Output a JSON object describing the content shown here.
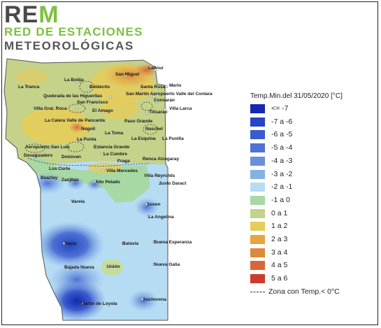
{
  "logo": {
    "brand_part1": "RE",
    "brand_part2": "M",
    "line1": "RED DE ESTACIONES",
    "line2": "METEOROLÓGICAS"
  },
  "legend": {
    "title": "Temp.Min.del 31/05/2020 [°C]",
    "items": [
      {
        "label": "<= -7",
        "color": "#1428b4"
      },
      {
        "label": "-7 a -6",
        "color": "#2446c4"
      },
      {
        "label": "-6 a -5",
        "color": "#3a5ccc"
      },
      {
        "label": "-5 a -4",
        "color": "#4e72d4"
      },
      {
        "label": "-4 a -3",
        "color": "#6890dc"
      },
      {
        "label": "-3 a -2",
        "color": "#84b0e6"
      },
      {
        "label": "-2 a -1",
        "color": "#b6dcf4"
      },
      {
        "label": "-1 a 0",
        "color": "#a8d8a4"
      },
      {
        "label": "0 a 1",
        "color": "#c4d28a"
      },
      {
        "label": "1 a 2",
        "color": "#e6cc5a"
      },
      {
        "label": "2 a 3",
        "color": "#e4a642"
      },
      {
        "label": "3 a 4",
        "color": "#dc8a3c"
      },
      {
        "label": "4 a 5",
        "color": "#d8663a"
      },
      {
        "label": "5 a 6",
        "color": "#cc3c2c"
      }
    ],
    "zone_label": "Zona con Temp.< 0°C"
  },
  "places": [
    "Lafinur",
    "La Botija",
    "San Miguel",
    "La Tranca",
    "Beldecito",
    "Santa Rosa",
    "Merlo",
    "Quebrada de las Higueritas",
    "San Martín Aeropuerto Valle del Conlara",
    "San Francisco",
    "Concarán",
    "Villa Gral. Roca",
    "El Amago",
    "Villa Larca",
    "Tilisarao",
    "La Calera Valle de Pancanta",
    "Paso Grande",
    "Nogolí",
    "Naschel",
    "La Toma",
    "La Punta",
    "La Esquina",
    "La Punilla",
    "Aeropuerto San Luis",
    "Estancia Grande",
    "Desaguadero",
    "Donovan",
    "La Cumbre",
    "Fraga",
    "Renca Alzogaray",
    "Los Corte",
    "Villa Mercedes",
    "Villa Reynolds",
    "Beazley",
    "Zanjitas",
    "Alto Pelado",
    "Justo Daract",
    "Varela",
    "Soven",
    "La Angelina",
    "Navia",
    "Batavia",
    "Buena Esperanza",
    "Bajada Nueva",
    "Unión",
    "Nueva Galia",
    "Martín de Loyola",
    "Anchorena"
  ]
}
